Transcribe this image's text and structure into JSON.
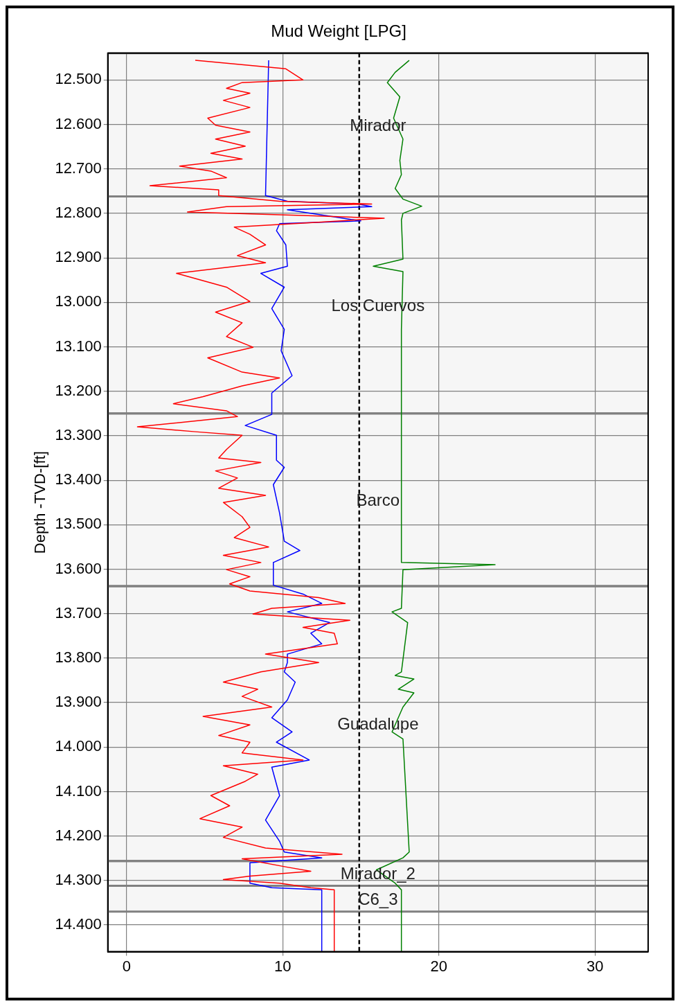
{
  "chart_data": {
    "type": "line",
    "title": "Mud Weight [LPG]",
    "ylabel": "Depth -TVD-[ft]",
    "orientation": "horizontal",
    "grid": true,
    "line_style": "solid",
    "xlim": [
      -1.2,
      33.4
    ],
    "xticks": [
      0,
      10,
      20,
      30
    ],
    "ylim": [
      14460,
      12440
    ],
    "yticks": [
      {
        "value": 12500,
        "label": "12.500"
      },
      {
        "value": 12600,
        "label": "12.600"
      },
      {
        "value": 12700,
        "label": "12.700"
      },
      {
        "value": 12800,
        "label": "12.800"
      },
      {
        "value": 12900,
        "label": "12.900"
      },
      {
        "value": 13000,
        "label": "13.000"
      },
      {
        "value": 13100,
        "label": "13.100"
      },
      {
        "value": 13200,
        "label": "13.200"
      },
      {
        "value": 13300,
        "label": "13.300"
      },
      {
        "value": 13400,
        "label": "13.400"
      },
      {
        "value": 13500,
        "label": "13.500"
      },
      {
        "value": 13600,
        "label": "13.600"
      },
      {
        "value": 13700,
        "label": "13.700"
      },
      {
        "value": 13800,
        "label": "13.800"
      },
      {
        "value": 13900,
        "label": "13.900"
      },
      {
        "value": 14000,
        "label": "14.000"
      },
      {
        "value": 14100,
        "label": "14.100"
      },
      {
        "value": 14200,
        "label": "14.200"
      },
      {
        "value": 14300,
        "label": "14.300"
      },
      {
        "value": 14400,
        "label": "14.400"
      }
    ],
    "series": [
      {
        "color": "#ff0000",
        "x": [
          12456,
          12475,
          12500,
          12506,
          12519,
          12530,
          12546,
          12562,
          12586,
          12602,
          12617,
          12633,
          12649,
          12665,
          12678,
          12694,
          12705,
          12720,
          12738,
          12747,
          12760,
          12773,
          12779,
          12785,
          12797,
          12805,
          12811,
          12820,
          12831,
          12847,
          12871,
          12895,
          12911,
          12935,
          12966,
          12998,
          13022,
          13046,
          13077,
          13101,
          13125,
          13157,
          13170,
          13188,
          13212,
          13228,
          13244,
          13257,
          13280,
          13291,
          13299,
          13331,
          13350,
          13360,
          13379,
          13395,
          13418,
          13434,
          13450,
          13482,
          13506,
          13529,
          13550,
          13569,
          13585,
          13601,
          13617,
          13633,
          13649,
          13664,
          13677,
          13688,
          13701,
          13715,
          13731,
          13744,
          13768,
          13791,
          13810,
          13831,
          13854,
          13870,
          13886,
          13910,
          13931,
          13950,
          13974,
          13989,
          14013,
          14029,
          14042,
          14061,
          14077,
          14109,
          14132,
          14161,
          14180,
          14203,
          14227,
          14241,
          14251,
          14270,
          14279,
          14290,
          14298,
          14306,
          14316,
          14321,
          14460
        ],
        "values": [
          4.4,
          10.2,
          11.3,
          7.4,
          6.4,
          7.9,
          6.2,
          7.9,
          5.2,
          5.7,
          7.9,
          5.7,
          7.6,
          5.4,
          7.4,
          3.4,
          5.4,
          6.4,
          1.5,
          5.9,
          5.9,
          9.8,
          15.7,
          6.4,
          3.9,
          11.3,
          16.5,
          12.3,
          6.9,
          7.9,
          8.9,
          7.1,
          8.9,
          3.2,
          6.4,
          7.9,
          5.7,
          7.4,
          6.4,
          8.1,
          5.2,
          7.4,
          9.8,
          7.4,
          4.9,
          3.0,
          6.4,
          7.1,
          0.7,
          4.4,
          7.4,
          6.4,
          5.9,
          8.6,
          5.7,
          7.1,
          5.9,
          8.9,
          6.2,
          7.4,
          7.9,
          6.9,
          9.1,
          6.2,
          8.6,
          6.4,
          7.9,
          6.6,
          7.9,
          12.3,
          14.0,
          9.3,
          8.1,
          14.3,
          11.3,
          13.3,
          13.5,
          8.9,
          12.3,
          8.6,
          6.2,
          8.4,
          7.4,
          9.3,
          4.9,
          7.9,
          5.9,
          7.9,
          7.4,
          11.3,
          6.2,
          8.4,
          7.6,
          5.4,
          6.6,
          4.7,
          7.4,
          6.2,
          8.9,
          13.8,
          7.4,
          10.3,
          11.8,
          7.9,
          6.2,
          9.8,
          11.8,
          13.3,
          13.3
        ]
      },
      {
        "color": "#0000ff",
        "x": [
          12456,
          12760,
          12773,
          12779,
          12785,
          12792,
          12808,
          12817,
          12823,
          12839,
          12871,
          12919,
          12935,
          12966,
          13014,
          13061,
          13109,
          13165,
          13204,
          13252,
          13277,
          13299,
          13355,
          13371,
          13410,
          13474,
          13537,
          13558,
          13585,
          13636,
          13656,
          13677,
          13696,
          13720,
          13744,
          13768,
          13791,
          13810,
          13831,
          13854,
          13894,
          13934,
          13966,
          13989,
          14029,
          14045,
          14109,
          14164,
          14212,
          14236,
          14249,
          14260,
          14306,
          14316,
          14321,
          14460
        ],
        "values": [
          9.1,
          8.9,
          10.3,
          14.8,
          15.7,
          10.3,
          13.3,
          15.0,
          9.8,
          9.6,
          10.2,
          10.3,
          8.6,
          10.1,
          9.3,
          10.1,
          9.9,
          10.6,
          9.3,
          9.3,
          7.6,
          9.6,
          9.6,
          10.1,
          9.4,
          9.8,
          10.1,
          11.1,
          9.4,
          9.4,
          11.3,
          12.5,
          10.3,
          13.0,
          11.8,
          12.5,
          10.3,
          10.3,
          10.1,
          10.8,
          10.3,
          9.3,
          10.6,
          9.6,
          11.7,
          9.3,
          9.8,
          8.9,
          9.8,
          10.1,
          12.5,
          7.9,
          7.9,
          9.3,
          12.5,
          12.5
        ]
      },
      {
        "color": "#008000",
        "x": [
          12456,
          12483,
          12506,
          12538,
          12586,
          12633,
          12681,
          12713,
          12744,
          12768,
          12784,
          12800,
          12815,
          12903,
          12919,
          12931,
          13061,
          13252,
          13585,
          13590,
          13601,
          13688,
          13696,
          13720,
          13831,
          13839,
          13847,
          13870,
          13878,
          13910,
          13966,
          13982,
          14236,
          14249,
          14276,
          14306,
          14321,
          14460
        ],
        "values": [
          18.1,
          17.2,
          16.7,
          17.5,
          17.1,
          17.7,
          17.5,
          17.6,
          17.2,
          17.7,
          18.9,
          17.7,
          17.6,
          17.7,
          15.8,
          17.7,
          17.6,
          17.6,
          17.6,
          23.6,
          17.7,
          17.6,
          17.0,
          18.0,
          17.6,
          17.2,
          18.4,
          17.4,
          18.4,
          17.7,
          17.0,
          17.7,
          18.1,
          17.7,
          16.0,
          17.2,
          17.6,
          17.6
        ]
      }
    ],
    "ref_lines": [
      {
        "axis": "x",
        "value": 14.9,
        "color": "#000000",
        "line_style": "dashed"
      }
    ],
    "bands": [
      {
        "axis": "y",
        "from": 12440,
        "to": 12762,
        "label": "Mirador",
        "color": "#808080"
      },
      {
        "axis": "y",
        "from": 12762,
        "to": 13250,
        "label": "Los Cuervos",
        "color": "#808080"
      },
      {
        "axis": "y",
        "from": 13250,
        "to": 13638,
        "label": "Barco",
        "color": "#808080"
      },
      {
        "axis": "y",
        "from": 13638,
        "to": 14256,
        "label": "Guadalupe",
        "color": "#808080"
      },
      {
        "axis": "y",
        "from": 14256,
        "to": 14312,
        "label": "Mirador_2",
        "color": "#808080"
      },
      {
        "axis": "y",
        "from": 14312,
        "to": 14370,
        "label": "C6_3",
        "color": "#808080"
      }
    ]
  }
}
